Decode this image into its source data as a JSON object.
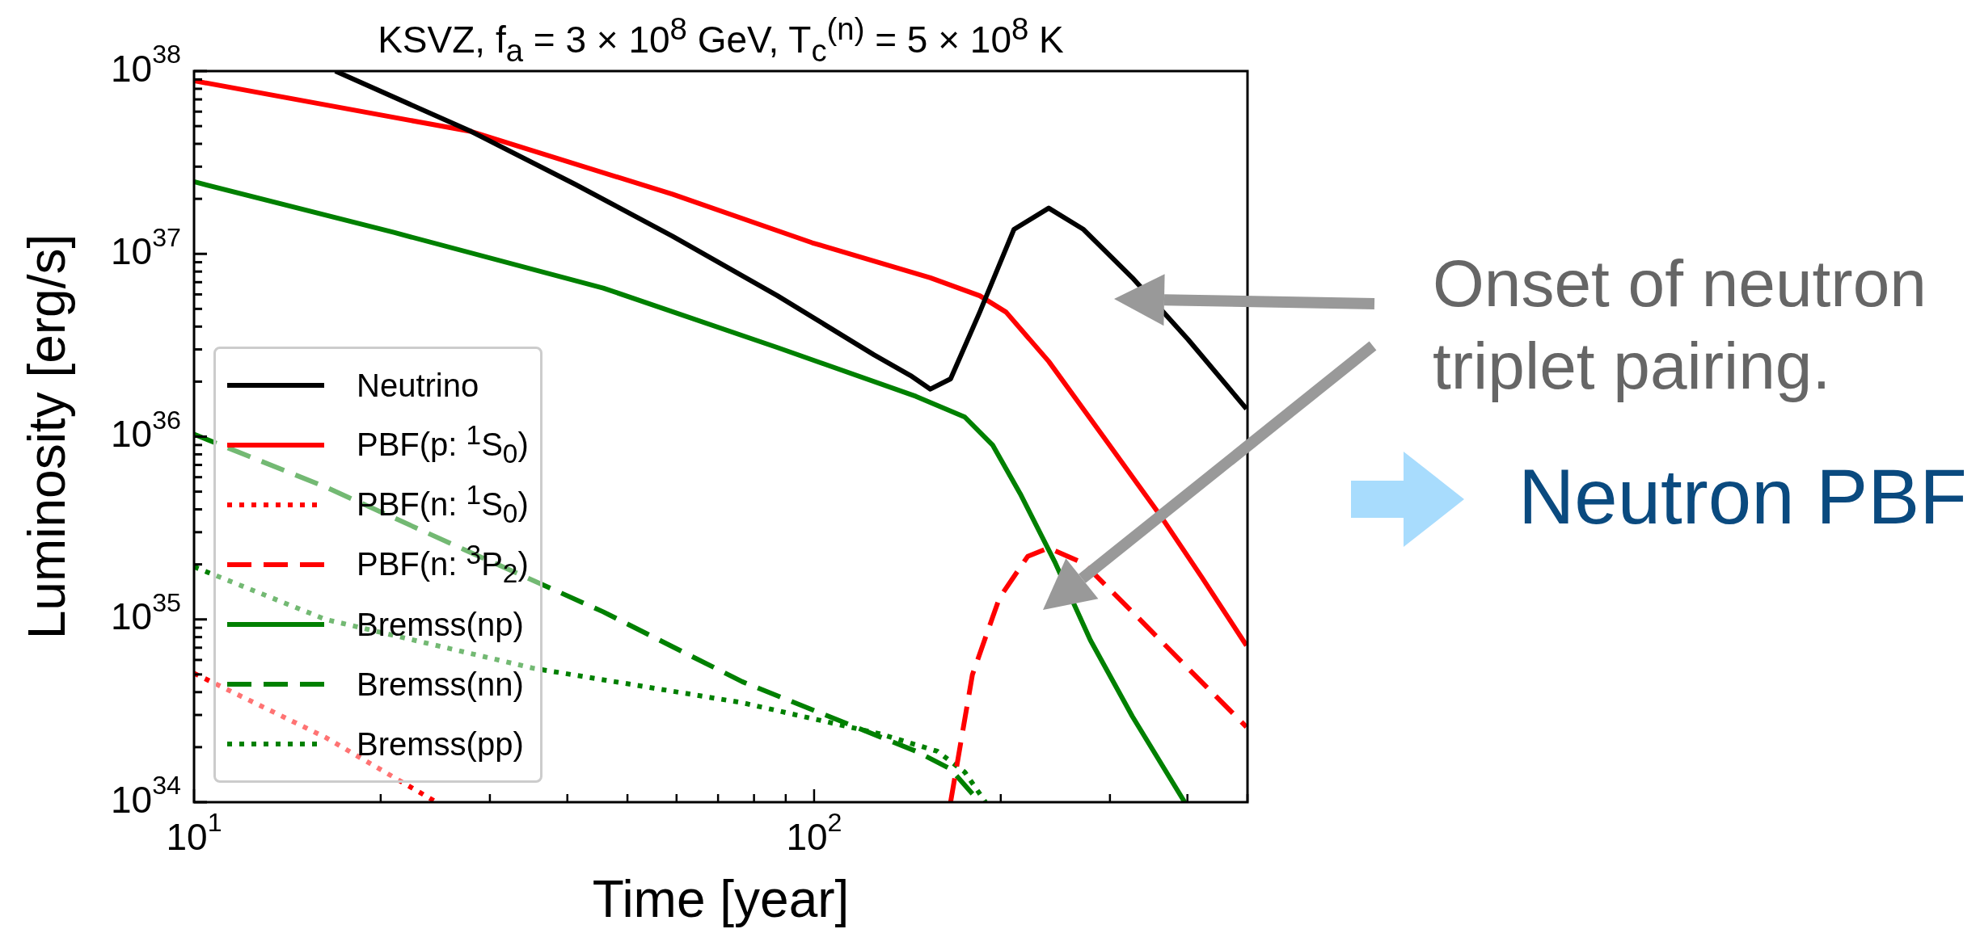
{
  "chart_data": {
    "type": "line",
    "title": "KSVZ, f$_{a}$ = 3 × 10$^{8}$ GeV, T$_{c}$$^{(n)}$ = 5 × 10$^{8}$ K",
    "xlabel": "Time [year]",
    "ylabel": "Luminosity [erg/s]",
    "log": "xy",
    "legend": "lower left",
    "marker": "none",
    "xlim": [
      10,
      500
    ],
    "ylim": [
      1e+34,
      1e+38
    ],
    "xticks": [
      {
        "value": 10,
        "label": "10$^{1}$"
      },
      {
        "value": 20,
        "label": null
      },
      {
        "value": 30,
        "label": null
      },
      {
        "value": 40,
        "label": null
      },
      {
        "value": 50,
        "label": null
      },
      {
        "value": 60,
        "label": null
      },
      {
        "value": 70,
        "label": null
      },
      {
        "value": 80,
        "label": null
      },
      {
        "value": 90,
        "label": null
      },
      {
        "value": 100,
        "label": "10$^{2}$"
      },
      {
        "value": 200,
        "label": null
      },
      {
        "value": 300,
        "label": null
      },
      {
        "value": 400,
        "label": null
      },
      {
        "value": 500,
        "label": null
      }
    ],
    "yticks": [
      {
        "value": 1e+34,
        "label": "10$^{34}$"
      },
      {
        "value": 2e+34,
        "label": null
      },
      {
        "value": 3e+34,
        "label": null
      },
      {
        "value": 4e+34,
        "label": null
      },
      {
        "value": 5e+34,
        "label": null
      },
      {
        "value": 6e+34,
        "label": null
      },
      {
        "value": 7e+34,
        "label": null
      },
      {
        "value": 8e+34,
        "label": null
      },
      {
        "value": 9e+34,
        "label": null
      },
      {
        "value": 1e+35,
        "label": "10$^{35}$"
      },
      {
        "value": 2e+35,
        "label": null
      },
      {
        "value": 3e+35,
        "label": null
      },
      {
        "value": 4e+35,
        "label": null
      },
      {
        "value": 5e+35,
        "label": null
      },
      {
        "value": 6e+35,
        "label": null
      },
      {
        "value": 7e+35,
        "label": null
      },
      {
        "value": 8e+35,
        "label": null
      },
      {
        "value": 9e+35,
        "label": null
      },
      {
        "value": 1e+36,
        "label": "10$^{36}$"
      },
      {
        "value": 2e+36,
        "label": null
      },
      {
        "value": 3e+36,
        "label": null
      },
      {
        "value": 4e+36,
        "label": null
      },
      {
        "value": 5e+36,
        "label": null
      },
      {
        "value": 6e+36,
        "label": null
      },
      {
        "value": 7e+36,
        "label": null
      },
      {
        "value": 8e+36,
        "label": null
      },
      {
        "value": 9e+36,
        "label": null
      },
      {
        "value": 1e+37,
        "label": "10$^{37}$"
      },
      {
        "value": 2e+37,
        "label": null
      },
      {
        "value": 3e+37,
        "label": null
      },
      {
        "value": 4e+37,
        "label": null
      },
      {
        "value": 5e+37,
        "label": null
      },
      {
        "value": 6e+37,
        "label": null
      },
      {
        "value": 7e+37,
        "label": null
      },
      {
        "value": 8e+37,
        "label": null
      },
      {
        "value": 9e+37,
        "label": null
      },
      {
        "value": 1e+38,
        "label": "10$^{38}$"
      }
    ],
    "series": [
      {
        "name": "Neutrino",
        "color": "#000000",
        "line_style": "solid",
        "x": [
          16.9,
          28,
          41.2,
          59.1,
          87.3,
          125,
          143,
          154,
          166,
          185,
          210,
          239,
          272,
          326,
          401,
          498
        ],
        "values": [
          1e+38,
          4.67e+37,
          2.4e+37,
          1.25e+37,
          5.9e+36,
          2.8e+36,
          2.16e+36,
          1.82e+36,
          2.07e+36,
          4.8e+36,
          1.36e+37,
          1.78e+37,
          1.36e+37,
          7.4e+36,
          3.4e+36,
          1.42e+36
        ]
      },
      {
        "name": "PBF(p: $^{1}$S$_{0}$)",
        "color": "#ff0000",
        "line_style": "solid",
        "x": [
          10,
          28,
          59.1,
          99.3,
          154,
          185,
          204,
          239,
          294,
          361,
          422,
          498
        ],
        "values": [
          8.85e+37,
          4.67e+37,
          2.12e+37,
          1.15e+37,
          7.4e+36,
          5.9e+36,
          4.8e+36,
          2.58e+36,
          9.8e+35,
          3.74e+35,
          1.7e+35,
          7.2e+34
        ]
      },
      {
        "name": "PBF(n: $^{1}$S$_{0}$)",
        "color": "#ff0000",
        "line_style": "dotted",
        "x": [
          10,
          16.3,
          24.6
        ],
        "values": [
          5.07e+34,
          2.26e+34,
          1e+34
        ]
      },
      {
        "name": "PBF(n: $^{3}$P$_{2}$)",
        "color": "#ff0000",
        "line_style": "dashed",
        "x": [
          166,
          180,
          199,
          221,
          239,
          272,
          326,
          401,
          498
        ],
        "values": [
          1e+34,
          4.98e+34,
          1.31e+35,
          2.21e+35,
          2.46e+35,
          2.03e+35,
          1.1e+35,
          5.4e+34,
          2.58e+34
        ]
      },
      {
        "name": "Bremss(np)",
        "color": "#008000",
        "line_style": "solid",
        "x": [
          10,
          21,
          45.7,
          87.3,
          146,
          175,
          194,
          215,
          245,
          279,
          326,
          396
        ],
        "values": [
          2.48e+37,
          1.31e+37,
          6.5e+36,
          3.07e+36,
          1.66e+36,
          1.28e+36,
          9e+35,
          4.87e+35,
          2.03e+35,
          7.7e+34,
          2.95e+34,
          1e+34
        ]
      },
      {
        "name": "Bremss(nn)",
        "color": "#008000",
        "line_style": "dashed",
        "x": [
          10,
          16.3,
          27.2,
          45.7,
          76.6,
          113,
          146,
          166,
          185
        ],
        "values": [
          1.03e+36,
          5.3e+35,
          2.42e+35,
          1.1e+35,
          4.56e+34,
          2.69e+34,
          1.9e+34,
          1.52e+34,
          1e+34
        ]
      },
      {
        "name": "Bremss(pp)",
        "color": "#008000",
        "line_style": "dotted",
        "x": [
          10,
          16.3,
          35.3,
          76.6,
          128,
          158,
          175,
          189
        ],
        "values": [
          1.94e+35,
          1e+35,
          5.4e+34,
          3.5e+34,
          2.36e+34,
          1.9e+34,
          1.46e+34,
          1e+34
        ]
      }
    ],
    "annotations": [
      "Onset of neutron triplet pairing.",
      "Neutron PBF"
    ]
  }
}
